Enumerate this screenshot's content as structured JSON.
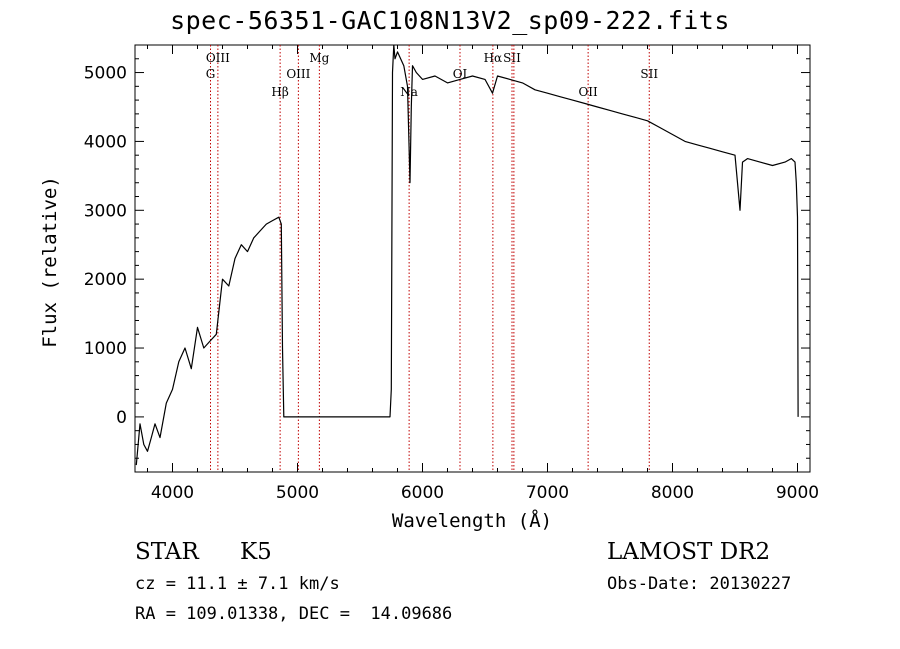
{
  "chart_data": {
    "type": "line",
    "title": "spec-56351-GAC108N13V2_sp09-222.fits",
    "xlabel": "Wavelength (Å)",
    "ylabel": "Flux (relative)",
    "xlim": [
      3700,
      9100
    ],
    "ylim": [
      -800,
      5400
    ],
    "x_ticks": [
      4000,
      5000,
      6000,
      7000,
      8000,
      9000
    ],
    "y_ticks": [
      0,
      1000,
      2000,
      3000,
      4000,
      5000
    ],
    "series": [
      {
        "x": [
          3710,
          3740,
          3770,
          3800,
          3830,
          3860,
          3900,
          3950,
          4000,
          4050,
          4100,
          4150,
          4200,
          4250,
          4300,
          4350,
          4400,
          4450,
          4500,
          4550,
          4600,
          4650,
          4700,
          4750,
          4800,
          4850,
          4870,
          4880,
          4890,
          4900,
          5000,
          5100,
          5200,
          5300,
          5400,
          5500,
          5600,
          5700,
          5740,
          5750,
          5760,
          5770,
          5780,
          5800,
          5850,
          5880,
          5900,
          5910,
          5920,
          5950,
          6000,
          6100,
          6200,
          6300,
          6400,
          6500,
          6560,
          6600,
          6700,
          6800,
          6900,
          7000,
          7100,
          7200,
          7300,
          7400,
          7500,
          7600,
          7700,
          7800,
          7900,
          8000,
          8100,
          8200,
          8300,
          8400,
          8500,
          8540,
          8560,
          8600,
          8700,
          8800,
          8900,
          8950,
          8980,
          8990,
          9000,
          9005
        ],
        "y": [
          -700,
          -100,
          -400,
          -500,
          -300,
          -100,
          -300,
          200,
          400,
          800,
          1000,
          700,
          1300,
          1000,
          1100,
          1200,
          2000,
          1900,
          2300,
          2500,
          2400,
          2600,
          2700,
          2800,
          2850,
          2900,
          2800,
          1000,
          0,
          0,
          0,
          0,
          0,
          0,
          0,
          0,
          0,
          0,
          0,
          400,
          5000,
          5400,
          5200,
          5300,
          5100,
          4800,
          3400,
          4500,
          5100,
          5000,
          4900,
          4950,
          4850,
          4900,
          4950,
          4900,
          4700,
          4950,
          4900,
          4850,
          4750,
          4700,
          4650,
          4600,
          4550,
          4500,
          4450,
          4400,
          4350,
          4300,
          4200,
          4100,
          4000,
          3950,
          3900,
          3850,
          3800,
          3000,
          3700,
          3750,
          3700,
          3650,
          3700,
          3750,
          3700,
          3400,
          2900,
          0
        ]
      }
    ],
    "lines": [
      {
        "x": 4304,
        "label": "G"
      },
      {
        "x": 4363,
        "label": "OIII"
      },
      {
        "x": 4861,
        "label": "Hβ"
      },
      {
        "x": 5007,
        "label": "OIII"
      },
      {
        "x": 5175,
        "label": "Mg"
      },
      {
        "x": 5893,
        "label": "Na"
      },
      {
        "x": 6300,
        "label": "OI"
      },
      {
        "x": 6563,
        "label": "Hα"
      },
      {
        "x": 6716,
        "label": "SII"
      },
      {
        "x": 6731,
        "label": "SII"
      },
      {
        "x": 7325,
        "label": "OII"
      },
      {
        "x": 7814,
        "label": "SII"
      }
    ]
  },
  "info": {
    "object_class": "STAR",
    "subclass": "K5",
    "survey": "LAMOST DR2",
    "cz": "cz = 11.1 ± 7.1 km/s",
    "obs_date": "Obs-Date: 20130227",
    "coords": "RA = 109.01338, DEC =  14.09686"
  },
  "colors": {
    "axis": "#000000",
    "spectrum": "#000000",
    "line_marker": "#c00000"
  }
}
